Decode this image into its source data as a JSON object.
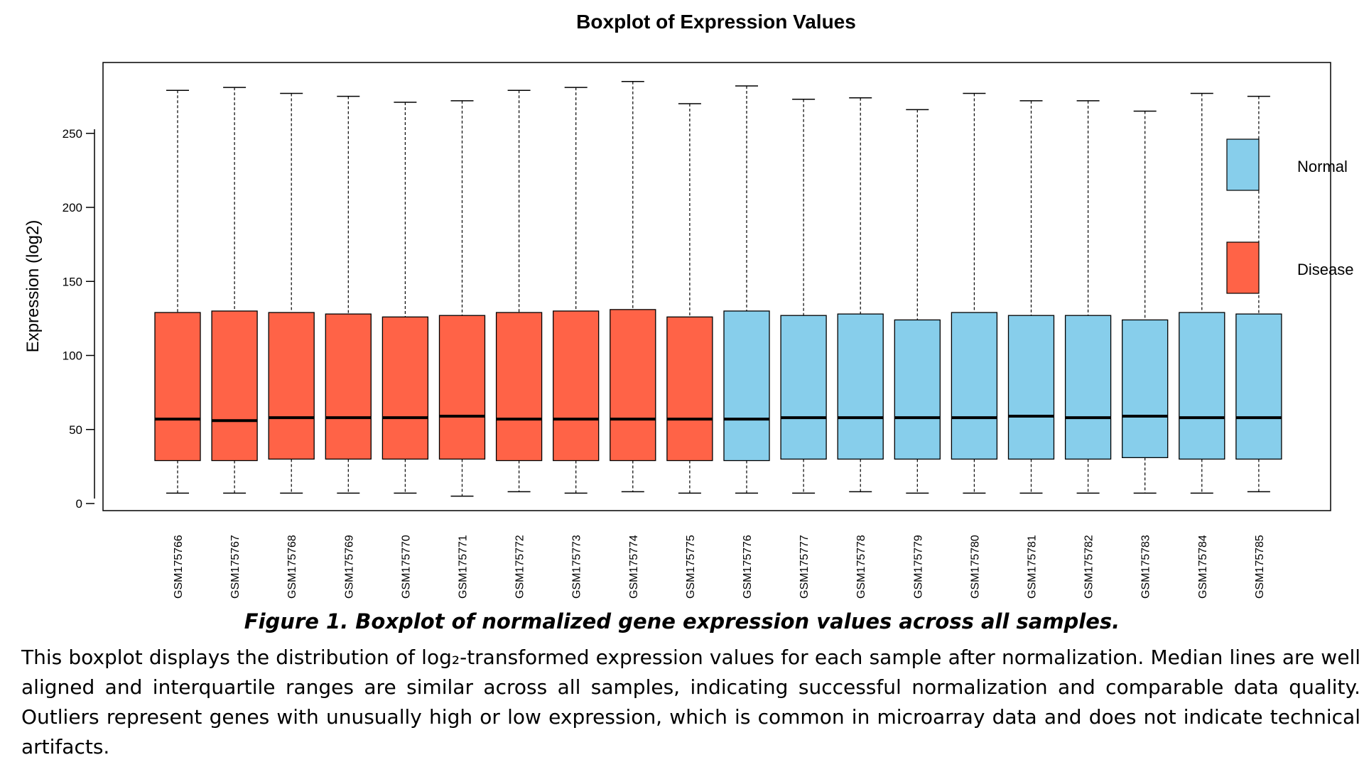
{
  "chart_data": {
    "type": "boxplot",
    "title": "Boxplot of Expression Values",
    "ylabel": "Expression (log2)",
    "xlabel": "",
    "ylim": [
      -5,
      300
    ],
    "y_ticks": [
      0,
      50,
      100,
      150,
      200,
      250
    ],
    "grid": false,
    "legend": {
      "position": "right",
      "entries": [
        {
          "name": "Normal",
          "color": "#87CEEB"
        },
        {
          "name": "Disease",
          "color": "#FF6347"
        }
      ]
    },
    "categories": [
      "GSM175766",
      "GSM175767",
      "GSM175768",
      "GSM175769",
      "GSM175770",
      "GSM175771",
      "GSM175772",
      "GSM175773",
      "GSM175774",
      "GSM175775",
      "GSM175776",
      "GSM175777",
      "GSM175778",
      "GSM175779",
      "GSM175780",
      "GSM175781",
      "GSM175782",
      "GSM175783",
      "GSM175784",
      "GSM175785"
    ],
    "groups": [
      "Disease",
      "Disease",
      "Disease",
      "Disease",
      "Disease",
      "Disease",
      "Disease",
      "Disease",
      "Disease",
      "Disease",
      "Normal",
      "Normal",
      "Normal",
      "Normal",
      "Normal",
      "Normal",
      "Normal",
      "Normal",
      "Normal",
      "Normal"
    ],
    "whisker_low": [
      7,
      7,
      7,
      7,
      7,
      5,
      8,
      7,
      8,
      7,
      7,
      7,
      8,
      7,
      7,
      7,
      7,
      7,
      7,
      8
    ],
    "q1": [
      29,
      29,
      30,
      30,
      30,
      30,
      29,
      29,
      29,
      29,
      29,
      30,
      30,
      30,
      30,
      30,
      30,
      31,
      30,
      30
    ],
    "median": [
      57,
      56,
      58,
      58,
      58,
      59,
      57,
      57,
      57,
      57,
      57,
      58,
      58,
      58,
      58,
      59,
      58,
      59,
      58,
      58
    ],
    "q3": [
      129,
      130,
      129,
      128,
      126,
      127,
      129,
      130,
      131,
      126,
      130,
      127,
      128,
      124,
      129,
      127,
      127,
      124,
      129,
      128
    ],
    "whisker_high": [
      279,
      281,
      277,
      275,
      271,
      272,
      279,
      281,
      285,
      270,
      282,
      273,
      274,
      266,
      277,
      272,
      272,
      265,
      277,
      275
    ]
  },
  "caption": "Figure 1. Boxplot of normalized gene expression values across all samples.",
  "description": "This boxplot displays the distribution of log₂-transformed expression values for each sample after normalization. Median lines are well aligned and interquartile ranges are similar across all samples, indicating successful normalization and comparable data quality. Outliers represent genes with unusually high or low expression, which is common in microarray data and does not indicate technical artifacts."
}
